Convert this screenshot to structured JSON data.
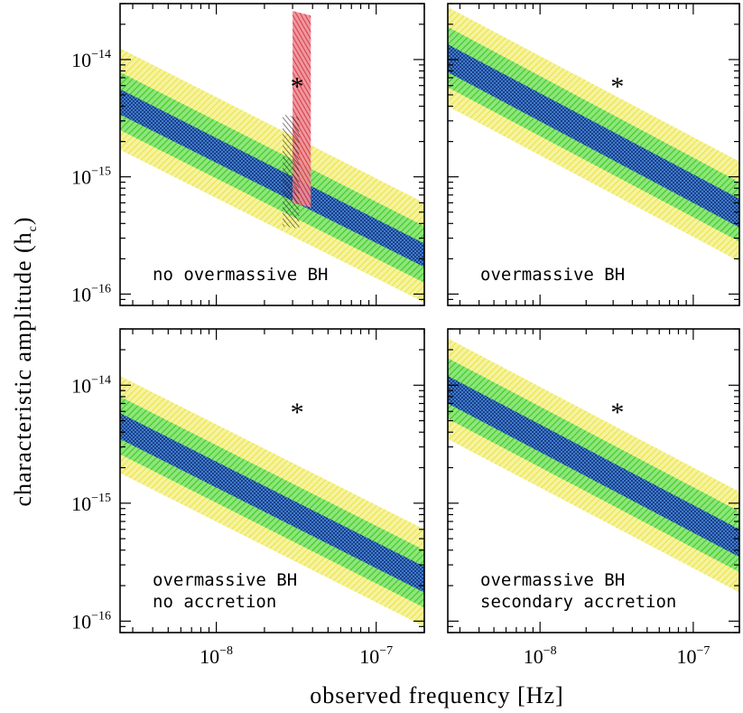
{
  "figure": {
    "xlabel": "observed frequency [Hz]",
    "ylabel_main": "characteristic amplitude (h",
    "ylabel_sub": "c",
    "ylabel_close": ")"
  },
  "colors": {
    "band_3sigma": "#f2ee55",
    "band_2sigma": "#57d93f",
    "band_1sigma": "#2f6fd0",
    "red_constraint": "#d92b3a",
    "black_constraint": "#222222",
    "frame": "#000000"
  },
  "chart_data": [
    {
      "type": "area",
      "panel": "top-left",
      "label_lines": [
        "no overmassive BH"
      ],
      "xscale": "log",
      "yscale": "log",
      "xlim": [
        2.5e-09,
        2e-07
      ],
      "ylim": [
        8e-17,
        3e-14
      ],
      "x_ticks": [
        {
          "mantissa": "10",
          "exp": "−8"
        },
        {
          "mantissa": "10",
          "exp": "−7"
        }
      ],
      "y_ticks": [
        {
          "mantissa": "10",
          "exp": "−14"
        },
        {
          "mantissa": "10",
          "exp": "−15"
        },
        {
          "mantissa": "10",
          "exp": "−16"
        }
      ],
      "bands": {
        "x": [
          2.5e-09,
          2e-07
        ],
        "sigma3": {
          "lower": [
            1.7e-15,
            8.5e-17
          ],
          "upper": [
            1.25e-14,
            6e-16
          ]
        },
        "sigma2": {
          "lower": [
            2.5e-15,
            1.25e-16
          ],
          "upper": [
            7.8e-15,
            3.8e-16
          ]
        },
        "sigma1": {
          "lower": [
            3.4e-15,
            1.7e-16
          ],
          "upper": [
            5.6e-15,
            2.7e-16
          ]
        }
      },
      "marker": {
        "symbol": "*",
        "x": 3.2e-08,
        "y": 6e-15
      },
      "constraints": [
        {
          "name": "red",
          "x": [
            3e-08,
            3.9e-08
          ],
          "y": [
            6e-16,
            2.6e-14
          ]
        },
        {
          "name": "black",
          "x": [
            2.6e-08,
            3.3e-08
          ],
          "y": [
            3.8e-16,
            3.4e-15
          ]
        }
      ]
    },
    {
      "type": "area",
      "panel": "top-right",
      "label_lines": [
        "overmassive BH"
      ],
      "xscale": "log",
      "yscale": "log",
      "xlim": [
        2.5e-09,
        2e-07
      ],
      "ylim": [
        8e-17,
        3e-14
      ],
      "x_ticks": [
        {
          "mantissa": "10",
          "exp": "−8"
        },
        {
          "mantissa": "10",
          "exp": "−7"
        }
      ],
      "y_ticks": [],
      "bands": {
        "x": [
          2.5e-09,
          2e-07
        ],
        "sigma3": {
          "lower": [
            4e-15,
            1.9e-16
          ],
          "upper": [
            2.8e-14,
            1.35e-15
          ]
        },
        "sigma2": {
          "lower": [
            5.8e-15,
            2.8e-16
          ],
          "upper": [
            1.9e-14,
            9e-16
          ]
        },
        "sigma1": {
          "lower": [
            7.8e-15,
            3.7e-16
          ],
          "upper": [
            1.35e-14,
            6.5e-16
          ]
        }
      },
      "marker": {
        "symbol": "*",
        "x": 3.2e-08,
        "y": 6e-15
      },
      "constraints": []
    },
    {
      "type": "area",
      "panel": "bottom-left",
      "label_lines": [
        "overmassive BH",
        "no accretion"
      ],
      "xscale": "log",
      "yscale": "log",
      "xlim": [
        2.5e-09,
        2e-07
      ],
      "ylim": [
        8e-17,
        3e-14
      ],
      "x_ticks": [
        {
          "mantissa": "10",
          "exp": "−8"
        },
        {
          "mantissa": "10",
          "exp": "−7"
        }
      ],
      "y_ticks": [
        {
          "mantissa": "10",
          "exp": "−14"
        },
        {
          "mantissa": "10",
          "exp": "−15"
        },
        {
          "mantissa": "10",
          "exp": "−16"
        }
      ],
      "bands": {
        "x": [
          2.5e-09,
          2e-07
        ],
        "sigma3": {
          "lower": [
            1.8e-15,
            9e-17
          ],
          "upper": [
            1.2e-14,
            6e-16
          ]
        },
        "sigma2": {
          "lower": [
            2.6e-15,
            1.3e-16
          ],
          "upper": [
            8e-15,
            4e-16
          ]
        },
        "sigma1": {
          "lower": [
            3.5e-15,
            1.75e-16
          ],
          "upper": [
            5.8e-15,
            2.9e-16
          ]
        }
      },
      "marker": {
        "symbol": "*",
        "x": 3.2e-08,
        "y": 6e-15
      },
      "constraints": []
    },
    {
      "type": "area",
      "panel": "bottom-right",
      "label_lines": [
        "overmassive BH",
        "secondary accretion"
      ],
      "xscale": "log",
      "yscale": "log",
      "xlim": [
        2.5e-09,
        2e-07
      ],
      "ylim": [
        8e-17,
        3e-14
      ],
      "x_ticks": [
        {
          "mantissa": "10",
          "exp": "−8"
        },
        {
          "mantissa": "10",
          "exp": "−7"
        }
      ],
      "y_ticks": [],
      "bands": {
        "x": [
          2.5e-09,
          2e-07
        ],
        "sigma3": {
          "lower": [
            3.5e-15,
            1.75e-16
          ],
          "upper": [
            2.5e-14,
            1.25e-15
          ]
        },
        "sigma2": {
          "lower": [
            5.2e-15,
            2.6e-16
          ],
          "upper": [
            1.7e-14,
            8.5e-16
          ]
        },
        "sigma1": {
          "lower": [
            7e-15,
            3.5e-16
          ],
          "upper": [
            1.2e-14,
            6e-16
          ]
        }
      },
      "marker": {
        "symbol": "*",
        "x": 3.2e-08,
        "y": 6e-15
      },
      "constraints": []
    }
  ]
}
